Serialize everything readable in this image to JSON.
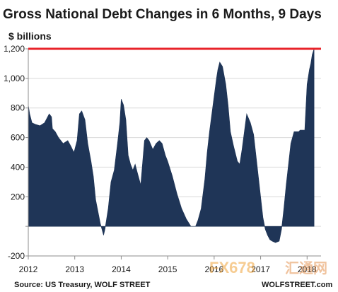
{
  "chart_data": {
    "type": "area",
    "title": "Gross National Debt Changes in 6 Months, 9 Days",
    "ylabel": "$ billions",
    "xlabel": "",
    "ylim": [
      -200,
      1200
    ],
    "xlim": [
      2012,
      2018.3
    ],
    "y_ticks": [
      -200,
      0,
      200,
      400,
      600,
      800,
      1000,
      1200
    ],
    "y_tick_labels": [
      "-200",
      "",
      "200",
      "400",
      "600",
      "800",
      "1,000",
      "1,200"
    ],
    "x_ticks": [
      2012,
      2013,
      2014,
      2015,
      2016,
      2017,
      2018
    ],
    "x_tick_labels": [
      "2012",
      "2013",
      "2014",
      "2015",
      "2016",
      "2017",
      "2018"
    ],
    "fill_color": "#1f3557",
    "reference_line": {
      "value": 1200,
      "color": "#e8232a"
    },
    "series": [
      {
        "x": [
          2012.0,
          2012.03,
          2012.08,
          2012.15,
          2012.25,
          2012.35,
          2012.45,
          2012.5,
          2012.52,
          2012.58,
          2012.65,
          2012.75,
          2012.85,
          2012.92,
          2012.98,
          2013.0,
          2013.05,
          2013.1,
          2013.15,
          2013.22,
          2013.28,
          2013.35,
          2013.4,
          2013.45,
          2013.5,
          2013.55,
          2013.62,
          2013.65,
          2013.68,
          2013.72,
          2013.78,
          2013.85,
          2013.92,
          2013.97,
          2014.0,
          2014.05,
          2014.1,
          2014.15,
          2014.2,
          2014.25,
          2014.3,
          2014.35,
          2014.42,
          2014.5,
          2014.55,
          2014.6,
          2014.68,
          2014.75,
          2014.82,
          2014.88,
          2014.95,
          2015.0,
          2015.1,
          2015.2,
          2015.3,
          2015.4,
          2015.5,
          2015.6,
          2015.65,
          2015.72,
          2015.8,
          2015.85,
          2015.9,
          2015.95,
          2016.0,
          2016.05,
          2016.08,
          2016.12,
          2016.18,
          2016.25,
          2016.3,
          2016.35,
          2016.42,
          2016.5,
          2016.55,
          2016.6,
          2016.65,
          2016.7,
          2016.78,
          2016.85,
          2016.9,
          2016.95,
          2017.0,
          2017.05,
          2017.1,
          2017.15,
          2017.2,
          2017.25,
          2017.32,
          2017.4,
          2017.45,
          2017.5,
          2017.55,
          2017.6,
          2017.65,
          2017.72,
          2017.78,
          2017.82,
          2017.85,
          2017.9,
          2017.95,
          2018.0,
          2018.05,
          2018.08,
          2018.11,
          2018.15
        ],
        "y": [
          820,
          760,
          700,
          690,
          680,
          700,
          760,
          740,
          660,
          640,
          600,
          560,
          580,
          540,
          500,
          520,
          580,
          760,
          780,
          720,
          560,
          440,
          340,
          180,
          100,
          20,
          -60,
          -20,
          40,
          120,
          300,
          380,
          560,
          700,
          860,
          820,
          720,
          480,
          420,
          380,
          420,
          360,
          280,
          580,
          600,
          580,
          520,
          560,
          580,
          560,
          480,
          440,
          340,
          220,
          120,
          50,
          0,
          0,
          40,
          120,
          320,
          500,
          640,
          760,
          880,
          1000,
          1060,
          1110,
          1080,
          960,
          820,
          640,
          540,
          440,
          420,
          520,
          640,
          760,
          700,
          620,
          480,
          340,
          200,
          60,
          -20,
          -60,
          -90,
          -100,
          -110,
          -100,
          -20,
          120,
          280,
          420,
          560,
          640,
          640,
          640,
          650,
          650,
          650,
          960,
          1060,
          1100,
          1160,
          1200
        ]
      }
    ]
  },
  "source": "Source: US Treasury, WOLF STREET",
  "watermark": "WOLFSTREET.com",
  "logo": {
    "latin": "FX678",
    "cjk": "汇通网"
  }
}
